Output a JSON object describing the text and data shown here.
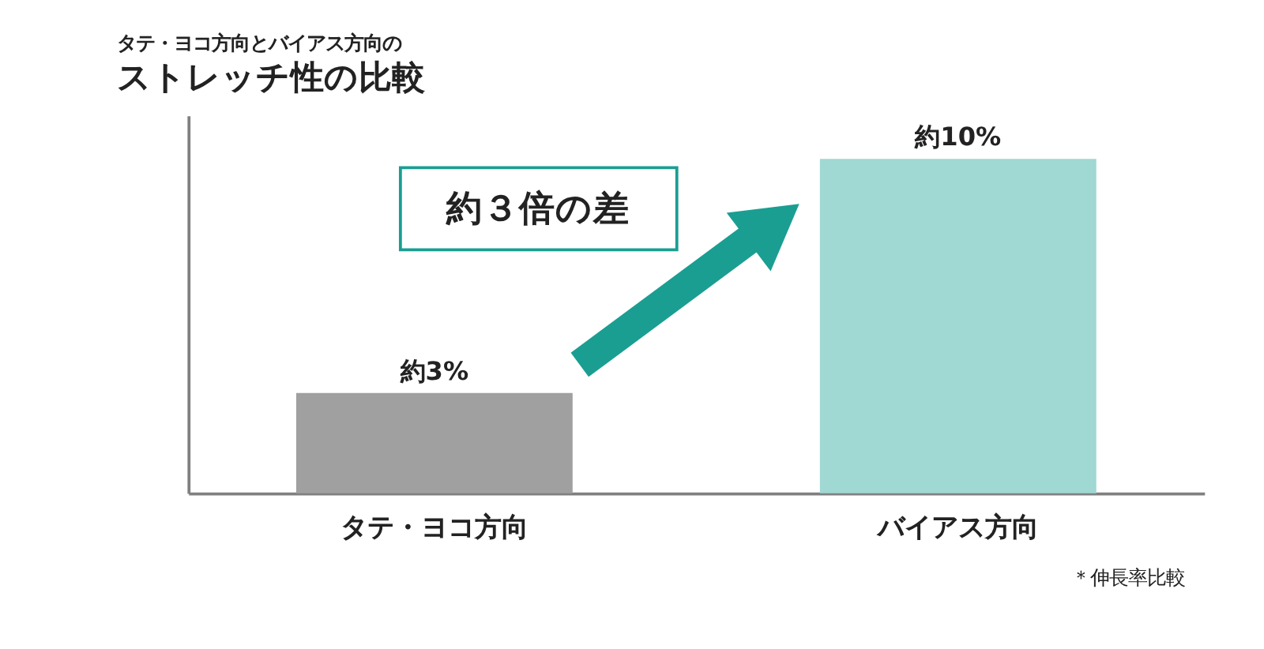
{
  "chart_data": {
    "type": "bar",
    "title": "タテ・ヨコ方向とバイアス方向の",
    "subtitle": "ストレッチ性の比較",
    "categories": [
      "タテ・ヨコ方向",
      "バイアス方向"
    ],
    "values": [
      3,
      10
    ],
    "colors": [
      "#a0a0a0",
      "#a0d8d3"
    ],
    "value_labels": [
      "約3%",
      "約10%"
    ],
    "annotations": [
      "約３倍の差",
      "＊伸長率比較"
    ],
    "tick_labels": "x",
    "grid": false,
    "legend": false
  }
}
